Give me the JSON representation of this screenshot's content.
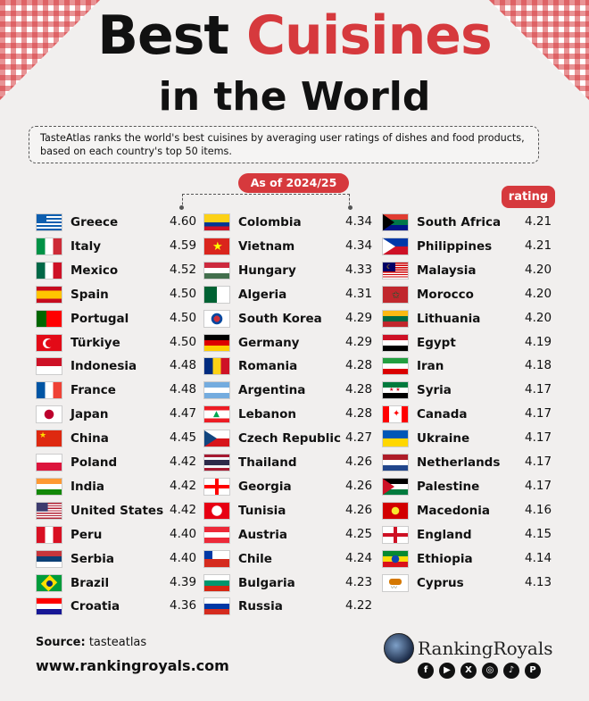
{
  "header": {
    "title_part1": "Best",
    "title_part2": "Cuisines",
    "title_line2": "in the World",
    "description": "TasteAtlas ranks the world's best cuisines by averaging user ratings of dishes and food products, based on each country's top 50 items.",
    "as_of": "As of 2024/25",
    "rating_label": "rating"
  },
  "footer": {
    "source_label": "Source:",
    "source_value": " tasteatlas",
    "website": "www.rankingroyals.com",
    "brand": "RankingRoyals",
    "social_icons": [
      "facebook-icon",
      "youtube-icon",
      "x-icon",
      "instagram-icon",
      "tiktok-icon",
      "pinterest-icon"
    ]
  },
  "colors": {
    "accent": "#d6393d",
    "background": "#f1efee",
    "text": "#111111"
  },
  "chart_data": {
    "type": "table",
    "columns": [
      "country",
      "rating"
    ],
    "rows": [
      {
        "country": "Greece",
        "rating": 4.6,
        "flag": "greece"
      },
      {
        "country": "Italy",
        "rating": 4.59,
        "flag": "italy"
      },
      {
        "country": "Mexico",
        "rating": 4.52,
        "flag": "mexico"
      },
      {
        "country": "Spain",
        "rating": 4.5,
        "flag": "spain"
      },
      {
        "country": "Portugal",
        "rating": 4.5,
        "flag": "portugal"
      },
      {
        "country": "Türkiye",
        "rating": 4.5,
        "flag": "turkiye"
      },
      {
        "country": "Indonesia",
        "rating": 4.48,
        "flag": "indonesia"
      },
      {
        "country": "France",
        "rating": 4.48,
        "flag": "france"
      },
      {
        "country": "Japan",
        "rating": 4.47,
        "flag": "japan"
      },
      {
        "country": "China",
        "rating": 4.45,
        "flag": "china"
      },
      {
        "country": "Poland",
        "rating": 4.42,
        "flag": "poland"
      },
      {
        "country": "India",
        "rating": 4.42,
        "flag": "india"
      },
      {
        "country": "United States",
        "rating": 4.42,
        "flag": "usa"
      },
      {
        "country": "Peru",
        "rating": 4.4,
        "flag": "peru"
      },
      {
        "country": "Serbia",
        "rating": 4.4,
        "flag": "serbia"
      },
      {
        "country": "Brazil",
        "rating": 4.39,
        "flag": "brazil"
      },
      {
        "country": "Croatia",
        "rating": 4.36,
        "flag": "croatia"
      },
      {
        "country": "Colombia",
        "rating": 4.34,
        "flag": "colombia"
      },
      {
        "country": "Vietnam",
        "rating": 4.34,
        "flag": "vietnam"
      },
      {
        "country": "Hungary",
        "rating": 4.33,
        "flag": "hungary"
      },
      {
        "country": "Algeria",
        "rating": 4.31,
        "flag": "algeria"
      },
      {
        "country": "South Korea",
        "rating": 4.29,
        "flag": "southkorea"
      },
      {
        "country": "Germany",
        "rating": 4.29,
        "flag": "germany"
      },
      {
        "country": "Romania",
        "rating": 4.28,
        "flag": "romania"
      },
      {
        "country": "Argentina",
        "rating": 4.28,
        "flag": "argentina"
      },
      {
        "country": "Lebanon",
        "rating": 4.28,
        "flag": "lebanon"
      },
      {
        "country": "Czech Republic",
        "rating": 4.27,
        "flag": "czech"
      },
      {
        "country": "Thailand",
        "rating": 4.26,
        "flag": "thailand"
      },
      {
        "country": "Georgia",
        "rating": 4.26,
        "flag": "georgia"
      },
      {
        "country": "Tunisia",
        "rating": 4.26,
        "flag": "tunisia"
      },
      {
        "country": "Austria",
        "rating": 4.25,
        "flag": "austria"
      },
      {
        "country": "Chile",
        "rating": 4.24,
        "flag": "chile"
      },
      {
        "country": "Bulgaria",
        "rating": 4.23,
        "flag": "bulgaria"
      },
      {
        "country": "Russia",
        "rating": 4.22,
        "flag": "russia"
      },
      {
        "country": "South Africa",
        "rating": 4.21,
        "flag": "southafrica"
      },
      {
        "country": "Philippines",
        "rating": 4.21,
        "flag": "philippines"
      },
      {
        "country": "Malaysia",
        "rating": 4.2,
        "flag": "malaysia"
      },
      {
        "country": "Morocco",
        "rating": 4.2,
        "flag": "morocco"
      },
      {
        "country": "Lithuania",
        "rating": 4.2,
        "flag": "lithuania"
      },
      {
        "country": "Egypt",
        "rating": 4.19,
        "flag": "egypt"
      },
      {
        "country": "Iran",
        "rating": 4.18,
        "flag": "iran"
      },
      {
        "country": "Syria",
        "rating": 4.17,
        "flag": "syria"
      },
      {
        "country": "Canada",
        "rating": 4.17,
        "flag": "canada"
      },
      {
        "country": "Ukraine",
        "rating": 4.17,
        "flag": "ukraine"
      },
      {
        "country": "Netherlands",
        "rating": 4.17,
        "flag": "netherlands"
      },
      {
        "country": "Palestine",
        "rating": 4.17,
        "flag": "palestine"
      },
      {
        "country": "Macedonia",
        "rating": 4.16,
        "flag": "macedonia"
      },
      {
        "country": "England",
        "rating": 4.15,
        "flag": "england"
      },
      {
        "country": "Ethiopia",
        "rating": 4.14,
        "flag": "ethiopia"
      },
      {
        "country": "Cyprus",
        "rating": 4.13,
        "flag": "cyprus"
      }
    ]
  }
}
